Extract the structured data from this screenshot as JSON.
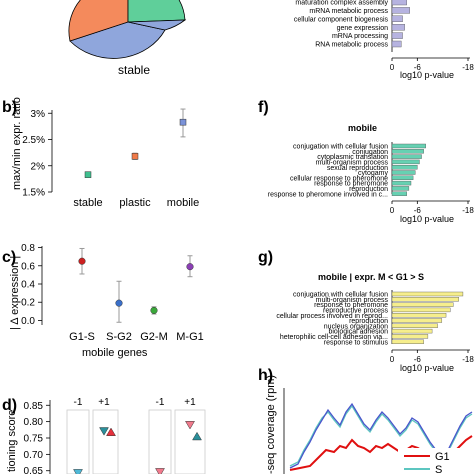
{
  "panels": {
    "a": {
      "center_label": "stable"
    },
    "b": {
      "letter": "b)"
    },
    "c": {
      "letter": "c)",
      "caption": "mobile genes"
    },
    "d": {
      "letter": "d)"
    },
    "e": {},
    "f": {
      "letter": "f)",
      "title": "mobile"
    },
    "g": {
      "letter": "g)",
      "title": "mobile | expr. M < G1 > S"
    },
    "h": {
      "letter": "h)"
    }
  },
  "colors": {
    "pie_blue": "#8fa6dc",
    "pie_orange": "#f48a5c",
    "pie_green": "#5fcf9a",
    "bar_purple": "#b6b3e0",
    "bar_teal": "#66d1b2",
    "bar_yellow": "#f6ee8c",
    "b_stable": "#3fbf8f",
    "b_plastic": "#f07a48",
    "b_mobile": "#7a92d8",
    "c_g1s": "#cc2020",
    "c_sg2": "#3a6fc9",
    "c_g2m": "#3aa83a",
    "c_mg1": "#8b3fb5",
    "d_pink": "#f07a8c",
    "d_red": "#e6303c",
    "d_teal": "#2a8f9a",
    "h_red": "#e01010",
    "h_blue": "#4a55cc",
    "h_teal": "#5cc6c0"
  },
  "chart_data": [
    {
      "panel": "a",
      "type": "pie",
      "labels": [
        "stable"
      ],
      "series": [
        {
          "name": "stable",
          "color": "#8fa6dc"
        },
        {
          "color": "#f48a5c"
        },
        {
          "color": "#5fcf9a"
        }
      ]
    },
    {
      "panel": "b",
      "type": "scatter",
      "ylabel": "max/min expr. ratio",
      "categories": [
        "stable",
        "plastic",
        "mobile"
      ],
      "values": [
        1.83,
        2.18,
        2.83
      ],
      "err_low": [
        1.8,
        2.12,
        2.55
      ],
      "err_high": [
        1.87,
        2.24,
        3.08
      ],
      "ylim": [
        1.5,
        3.1
      ],
      "yticks": [
        1.5,
        2,
        2.5,
        3
      ],
      "yticklabels": [
        "1.5%",
        "2%",
        "2.5%",
        "3%"
      ]
    },
    {
      "panel": "c",
      "type": "scatter",
      "ylabel": "| Δ expression |",
      "xlabel": "mobile genes",
      "categories": [
        "G1-S",
        "S-G2",
        "G2-M",
        "M-G1"
      ],
      "values": [
        0.65,
        0.19,
        0.11,
        0.59
      ],
      "err_low": [
        0.51,
        -0.02,
        0.07,
        0.48
      ],
      "err_high": [
        0.79,
        0.43,
        0.15,
        0.71
      ],
      "ylim": [
        -0.05,
        0.85
      ],
      "yticks": [
        0,
        0.2,
        0.4,
        0.6,
        0.8
      ],
      "yticklabels": [
        "0.0",
        "0.2",
        "0.4",
        "0.6",
        "0.8"
      ]
    },
    {
      "panel": "d",
      "type": "scatter",
      "ylabel": "tioning score",
      "group_labels": [
        "-1",
        "+1",
        "-1",
        "+1"
      ],
      "ylim": [
        0.64,
        0.86
      ],
      "yticks": [
        0.65,
        0.7,
        0.75,
        0.8,
        0.85
      ],
      "yticklabels": [
        "0.65",
        "0.70",
        "0.75",
        "0.80",
        "0.85"
      ],
      "points": [
        {
          "group": 0,
          "value": 0.643,
          "marker": "down",
          "color": "#4fb8d6"
        },
        {
          "group": 1,
          "value": 0.771,
          "marker": "down",
          "color": "#2a8f9a"
        },
        {
          "group": 1,
          "value": 0.768,
          "marker": "up",
          "color": "#e6303c"
        },
        {
          "group": 2,
          "value": 0.646,
          "marker": "down",
          "color": "#f07a8c"
        },
        {
          "group": 3,
          "value": 0.79,
          "marker": "down",
          "color": "#f07a8c"
        },
        {
          "group": 3,
          "value": 0.755,
          "marker": "up",
          "color": "#2a8f9a"
        }
      ]
    },
    {
      "panel": "e",
      "type": "bar",
      "orientation": "horizontal",
      "xlabel": "log10 p-value",
      "xticks": [
        0,
        -6,
        -18
      ],
      "xticklabels": [
        "0",
        "-6",
        "-18"
      ],
      "categories": [
        "maturation complex assembly",
        "mRNA metabolic process",
        "cellular component biogenesis",
        "gene expression",
        "mRNA processing",
        "RNA metabolic process"
      ],
      "values": [
        -3.5,
        -4.2,
        -2.5,
        -3.0,
        -2.5,
        -2.2
      ]
    },
    {
      "panel": "f",
      "type": "bar",
      "orientation": "horizontal",
      "title": "mobile",
      "xlabel": "log10 p-value",
      "xticks": [
        0,
        -6,
        -18
      ],
      "xticklabels": [
        "0",
        "-6",
        "-18"
      ],
      "categories": [
        "conjugation with cellular fusion",
        "conjugation",
        "cytoplasmic translation",
        "multi-organism process",
        "sexual reproduction",
        "cytogamy",
        "cellular response to pheromone",
        "response to pheromone",
        "reproduction",
        "response to pheromone involved in c..."
      ],
      "values": [
        -8.0,
        -7.5,
        -7.0,
        -6.5,
        -6.0,
        -5.5,
        -5.0,
        -4.5,
        -4.0,
        -3.5
      ]
    },
    {
      "panel": "g",
      "type": "bar",
      "orientation": "horizontal",
      "title": "mobile | expr. M < G1 > S",
      "xlabel": "log10 p-value",
      "xticks": [
        0,
        -6,
        -18
      ],
      "xticklabels": [
        "0",
        "-6",
        "-18"
      ],
      "categories": [
        "conjugation with cellular fusion",
        "multi-organism process",
        "response to pheromone",
        "reproductive process",
        "cellular process involved in reprod...",
        "reproduction",
        "nucleus organization",
        "biological adhesion",
        "heterophilic cell-cell adhesion via...",
        "response to stimulus"
      ],
      "values": [
        -16.8,
        -15.8,
        -14.5,
        -13.8,
        -12.8,
        -11.8,
        -10.8,
        -9.5,
        -8.5,
        -7.5
      ]
    },
    {
      "panel": "h",
      "type": "line",
      "ylabel": "-seq coverage (rpm)",
      "series": [
        {
          "name": "G1",
          "color": "#e01010"
        },
        {
          "name": "S",
          "color": "#5cc6c0"
        },
        {
          "color": "#4a55cc"
        }
      ]
    }
  ]
}
